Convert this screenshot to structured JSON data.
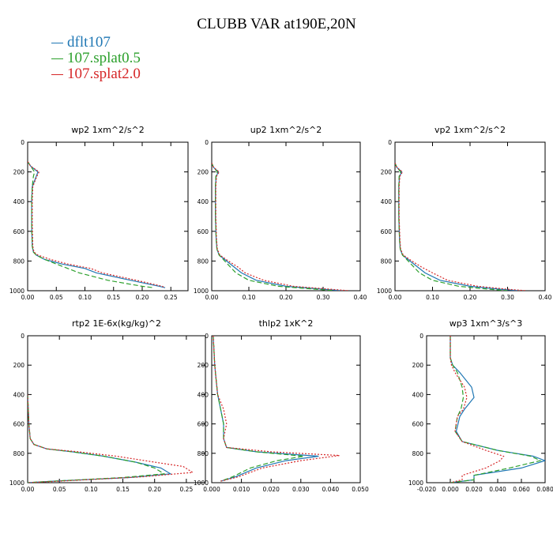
{
  "title": "CLUBB VAR at190E,20N",
  "legend": [
    {
      "label": "dflt107",
      "color": "#1f77b4"
    },
    {
      "label": "107.splat0.5",
      "color": "#2ca02c"
    },
    {
      "label": "107.splat2.0",
      "color": "#d62728"
    }
  ],
  "chart_data": [
    {
      "type": "line",
      "title": "wp2  1xm^2/s^2",
      "xlim": [
        0,
        0.28
      ],
      "ylim": [
        1000,
        0
      ],
      "xticks": [
        "0.00",
        "0.05",
        "0.10",
        "0.15",
        "0.20",
        "0.25"
      ],
      "xtick_values": [
        0,
        0.05,
        0.1,
        0.15,
        0.2,
        0.25
      ],
      "yticks": [
        "0",
        "200",
        "400",
        "600",
        "800",
        "1000"
      ],
      "ytick_values": [
        0,
        200,
        400,
        600,
        800,
        1000
      ],
      "series": [
        {
          "name": "dflt107",
          "color": "#1f77b4",
          "dash": "solid",
          "x": [
            0,
            0.005,
            0.018,
            0.015,
            0.008,
            0.007,
            0.007,
            0.008,
            0.01,
            0.015,
            0.03,
            0.06,
            0.1,
            0.12,
            0.18,
            0.23,
            0.24
          ],
          "y": [
            130,
            160,
            200,
            230,
            300,
            400,
            550,
            700,
            740,
            760,
            790,
            820,
            850,
            880,
            930,
            970,
            980
          ]
        },
        {
          "name": "107.splat0.5",
          "color": "#2ca02c",
          "dash": "6,3",
          "x": [
            0,
            0.005,
            0.012,
            0.01,
            0.008,
            0.007,
            0.007,
            0.008,
            0.01,
            0.015,
            0.03,
            0.05,
            0.07,
            0.09,
            0.14,
            0.2,
            0.22
          ],
          "y": [
            130,
            160,
            200,
            230,
            300,
            400,
            550,
            700,
            740,
            760,
            790,
            820,
            850,
            880,
            930,
            970,
            980
          ]
        },
        {
          "name": "107.splat2.0",
          "color": "#d62728",
          "dash": "2,2",
          "x": [
            0,
            0.005,
            0.02,
            0.016,
            0.009,
            0.008,
            0.008,
            0.009,
            0.011,
            0.018,
            0.04,
            0.07,
            0.11,
            0.13,
            0.19,
            0.235,
            0.24
          ],
          "y": [
            130,
            160,
            200,
            230,
            300,
            400,
            550,
            700,
            740,
            760,
            790,
            820,
            850,
            880,
            930,
            970,
            980
          ]
        }
      ]
    },
    {
      "type": "line",
      "title": "up2  1xm^2/s^2",
      "xlim": [
        0,
        0.4
      ],
      "ylim": [
        1000,
        0
      ],
      "xticks": [
        "0.00",
        "0.10",
        "0.20",
        "0.30",
        "0.40"
      ],
      "xtick_values": [
        0,
        0.1,
        0.2,
        0.3,
        0.4
      ],
      "yticks": [
        "0",
        "200",
        "400",
        "600",
        "800",
        "1000"
      ],
      "ytick_values": [
        0,
        200,
        400,
        600,
        800,
        1000
      ],
      "series": [
        {
          "name": "dflt107",
          "color": "#1f77b4",
          "dash": "solid",
          "x": [
            0,
            0.005,
            0.018,
            0.012,
            0.01,
            0.01,
            0.012,
            0.014,
            0.02,
            0.04,
            0.06,
            0.08,
            0.12,
            0.2,
            0.3,
            0.35
          ],
          "y": [
            140,
            170,
            200,
            230,
            300,
            500,
            650,
            720,
            760,
            800,
            840,
            880,
            930,
            970,
            990,
            1000
          ]
        },
        {
          "name": "107.splat0.5",
          "color": "#2ca02c",
          "dash": "6,3",
          "x": [
            0,
            0.005,
            0.015,
            0.011,
            0.01,
            0.01,
            0.012,
            0.014,
            0.02,
            0.035,
            0.05,
            0.065,
            0.1,
            0.18,
            0.28,
            0.33
          ],
          "y": [
            140,
            170,
            200,
            230,
            300,
            500,
            650,
            720,
            760,
            800,
            840,
            880,
            930,
            970,
            990,
            1000
          ]
        },
        {
          "name": "107.splat2.0",
          "color": "#d62728",
          "dash": "2,2",
          "x": [
            0,
            0.005,
            0.02,
            0.013,
            0.011,
            0.011,
            0.013,
            0.015,
            0.022,
            0.045,
            0.07,
            0.09,
            0.14,
            0.22,
            0.32,
            0.37
          ],
          "y": [
            140,
            170,
            200,
            230,
            300,
            500,
            650,
            720,
            760,
            800,
            840,
            880,
            930,
            970,
            990,
            1000
          ]
        }
      ]
    },
    {
      "type": "line",
      "title": "vp2  1xm^2/s^2",
      "xlim": [
        0,
        0.4
      ],
      "ylim": [
        1000,
        0
      ],
      "xticks": [
        "0.00",
        "0.10",
        "0.20",
        "0.30",
        "0.40"
      ],
      "xtick_values": [
        0,
        0.1,
        0.2,
        0.3,
        0.4
      ],
      "yticks": [
        "0",
        "200",
        "400",
        "600",
        "800",
        "1000"
      ],
      "ytick_values": [
        0,
        200,
        400,
        600,
        800,
        1000
      ],
      "series": [
        {
          "name": "dflt107",
          "color": "#1f77b4",
          "dash": "solid",
          "x": [
            0,
            0.005,
            0.018,
            0.012,
            0.01,
            0.01,
            0.012,
            0.014,
            0.02,
            0.04,
            0.06,
            0.08,
            0.12,
            0.2,
            0.28,
            0.33
          ],
          "y": [
            140,
            170,
            200,
            230,
            300,
            500,
            650,
            720,
            760,
            800,
            840,
            880,
            930,
            970,
            990,
            1000
          ]
        },
        {
          "name": "107.splat0.5",
          "color": "#2ca02c",
          "dash": "6,3",
          "x": [
            0,
            0.005,
            0.015,
            0.011,
            0.01,
            0.01,
            0.012,
            0.014,
            0.02,
            0.035,
            0.05,
            0.065,
            0.1,
            0.17,
            0.25,
            0.3
          ],
          "y": [
            140,
            170,
            200,
            230,
            300,
            500,
            650,
            720,
            760,
            800,
            840,
            880,
            930,
            970,
            990,
            1000
          ]
        },
        {
          "name": "107.splat2.0",
          "color": "#d62728",
          "dash": "2,2",
          "x": [
            0,
            0.005,
            0.02,
            0.013,
            0.011,
            0.011,
            0.013,
            0.015,
            0.022,
            0.045,
            0.07,
            0.1,
            0.14,
            0.22,
            0.3,
            0.35
          ],
          "y": [
            140,
            170,
            200,
            230,
            300,
            500,
            650,
            720,
            760,
            800,
            840,
            880,
            930,
            970,
            990,
            1000
          ]
        }
      ]
    },
    {
      "type": "line",
      "title": "rtp2  1E-6x(kg/kg)^2",
      "xlim": [
        0,
        0.28
      ],
      "ylim": [
        1000,
        0
      ],
      "xticks": [
        "0.00",
        "0.05",
        "0.10",
        "0.15",
        "0.20",
        "0.25"
      ],
      "xtick_values": [
        0,
        0.05,
        0.1,
        0.15,
        0.2,
        0.25
      ],
      "yticks": [
        "0",
        "200",
        "400",
        "600",
        "800",
        "1000"
      ],
      "ytick_values": [
        0,
        200,
        400,
        600,
        800,
        1000
      ],
      "series": [
        {
          "name": "dflt107",
          "color": "#1f77b4",
          "dash": "solid",
          "x": [
            0,
            0.001,
            0.002,
            0.004,
            0.01,
            0.03,
            0.07,
            0.12,
            0.17,
            0.21,
            0.225,
            0.16,
            0.04,
            0.0
          ],
          "y": [
            400,
            500,
            600,
            700,
            740,
            770,
            790,
            820,
            860,
            900,
            940,
            965,
            990,
            1000
          ]
        },
        {
          "name": "107.splat0.5",
          "color": "#2ca02c",
          "dash": "6,3",
          "x": [
            0,
            0.001,
            0.002,
            0.004,
            0.01,
            0.03,
            0.07,
            0.12,
            0.17,
            0.2,
            0.215,
            0.15,
            0.04,
            0.0
          ],
          "y": [
            400,
            500,
            600,
            700,
            740,
            770,
            790,
            820,
            860,
            900,
            940,
            965,
            990,
            1000
          ]
        },
        {
          "name": "107.splat2.0",
          "color": "#d62728",
          "dash": "2,2",
          "x": [
            0,
            0.001,
            0.002,
            0.004,
            0.01,
            0.03,
            0.08,
            0.14,
            0.2,
            0.245,
            0.26,
            0.18,
            0.05,
            0.0
          ],
          "y": [
            400,
            500,
            600,
            700,
            740,
            770,
            790,
            820,
            860,
            890,
            930,
            960,
            990,
            1000
          ]
        }
      ]
    },
    {
      "type": "line",
      "title": "thlp2  1xK^2",
      "xlim": [
        0,
        0.05
      ],
      "ylim": [
        1000,
        0
      ],
      "xticks": [
        "0.000",
        "0.010",
        "0.020",
        "0.030",
        "0.040",
        "0.050"
      ],
      "xtick_values": [
        0,
        0.01,
        0.02,
        0.03,
        0.04,
        0.05
      ],
      "yticks": [
        "0",
        "200",
        "400",
        "600",
        "800",
        "1000"
      ],
      "ytick_values": [
        0,
        200,
        400,
        600,
        800,
        1000
      ],
      "series": [
        {
          "name": "dflt107",
          "color": "#1f77b4",
          "dash": "solid",
          "x": [
            0.0005,
            0.001,
            0.0015,
            0.002,
            0.003,
            0.004,
            0.004,
            0.005,
            0.015,
            0.036,
            0.025,
            0.015,
            0.008,
            0.003
          ],
          "y": [
            0,
            200,
            300,
            400,
            500,
            600,
            700,
            760,
            790,
            820,
            850,
            900,
            960,
            990
          ]
        },
        {
          "name": "107.splat0.5",
          "color": "#2ca02c",
          "dash": "6,3",
          "x": [
            0.0005,
            0.001,
            0.0015,
            0.002,
            0.003,
            0.004,
            0.004,
            0.005,
            0.015,
            0.031,
            0.022,
            0.013,
            0.007,
            0.003
          ],
          "y": [
            0,
            200,
            300,
            400,
            500,
            600,
            700,
            760,
            790,
            820,
            850,
            900,
            960,
            990
          ]
        },
        {
          "name": "107.splat2.0",
          "color": "#d62728",
          "dash": "2,2",
          "x": [
            0.0005,
            0.001,
            0.0015,
            0.002,
            0.004,
            0.005,
            0.004,
            0.005,
            0.02,
            0.043,
            0.03,
            0.017,
            0.009,
            0.003
          ],
          "y": [
            0,
            200,
            300,
            400,
            500,
            600,
            700,
            760,
            790,
            815,
            850,
            900,
            960,
            990
          ]
        }
      ]
    },
    {
      "type": "line",
      "title": "wp3  1xm^3/s^3",
      "xlim": [
        -0.02,
        0.08
      ],
      "ylim": [
        1000,
        0
      ],
      "xticks": [
        "-0.020",
        "0.000",
        "0.020",
        "0.040",
        "0.060",
        "0.080"
      ],
      "xtick_values": [
        -0.02,
        0,
        0.02,
        0.04,
        0.06,
        0.08
      ],
      "yticks": [
        "0",
        "200",
        "400",
        "600",
        "800",
        "1000"
      ],
      "ytick_values": [
        0,
        200,
        400,
        600,
        800,
        1000
      ],
      "series": [
        {
          "name": "dflt107",
          "color": "#1f77b4",
          "dash": "solid",
          "x": [
            0.0,
            0.0,
            0.002,
            0.008,
            0.018,
            0.02,
            0.012,
            0.008,
            0.005,
            0.01,
            0.04,
            0.07,
            0.08,
            0.06,
            0.02,
            0.02,
            0.0
          ],
          "y": [
            0,
            150,
            200,
            250,
            350,
            420,
            500,
            550,
            650,
            720,
            780,
            820,
            850,
            900,
            950,
            980,
            1000
          ]
        },
        {
          "name": "107.splat0.5",
          "color": "#2ca02c",
          "dash": "6,3",
          "x": [
            0.0,
            0.0,
            0.002,
            0.006,
            0.01,
            0.011,
            0.009,
            0.006,
            0.004,
            0.01,
            0.04,
            0.068,
            0.076,
            0.05,
            0.02,
            0.02,
            0.0
          ],
          "y": [
            0,
            150,
            200,
            250,
            350,
            420,
            500,
            550,
            650,
            720,
            780,
            820,
            850,
            900,
            950,
            980,
            1000
          ]
        },
        {
          "name": "107.splat2.0",
          "color": "#d62728",
          "dash": "2,2",
          "x": [
            0.0,
            0.0,
            0.001,
            0.004,
            0.012,
            0.014,
            0.011,
            0.006,
            0.004,
            0.01,
            0.03,
            0.045,
            0.042,
            0.03,
            0.01,
            0.01,
            0.0
          ],
          "y": [
            0,
            150,
            200,
            250,
            350,
            420,
            500,
            550,
            650,
            720,
            780,
            820,
            850,
            900,
            950,
            980,
            1000
          ]
        }
      ]
    }
  ]
}
